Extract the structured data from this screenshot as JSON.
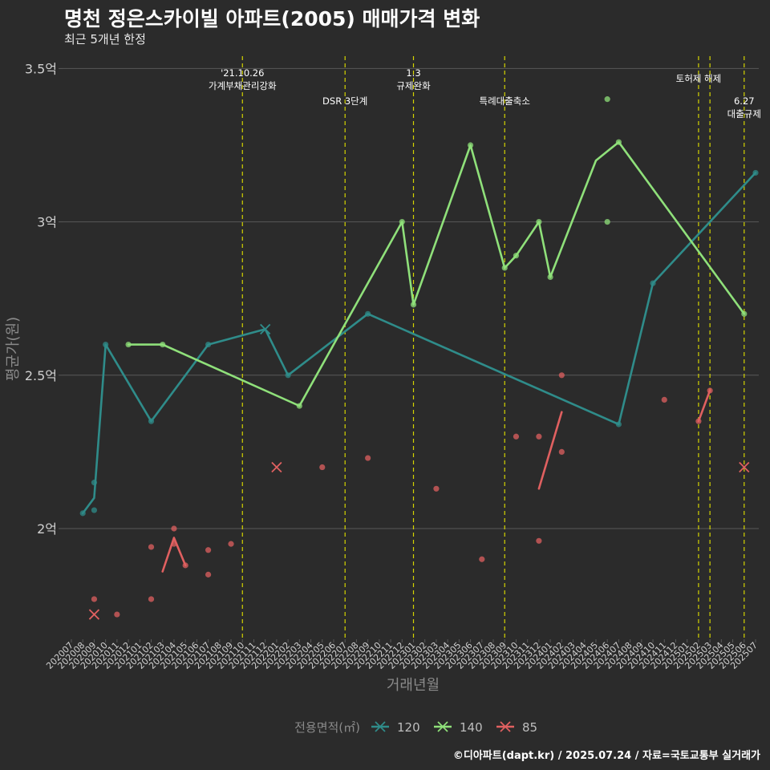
{
  "title": "명천 정은스카이빌 아파트(2005) 매매가격 변화",
  "subtitle": "최근 5개년 한정",
  "caption": "©디아파트(dapt.kr) / 2025.07.24 / 자료=국토교통부 실거래가",
  "chart_data": {
    "type": "line",
    "xlabel": "거래년월",
    "ylabel": "평균가(원)",
    "ylim": [
      1.64,
      3.52
    ],
    "y_ticks": [
      {
        "value": 2.0,
        "label": "2억"
      },
      {
        "value": 2.5,
        "label": "2.5억"
      },
      {
        "value": 3.0,
        "label": "3억"
      },
      {
        "value": 3.5,
        "label": "3.5억"
      }
    ],
    "x_categories": [
      "202007",
      "202008",
      "202009",
      "202010",
      "202011",
      "202012",
      "202101",
      "202102",
      "202103",
      "202104",
      "202105",
      "202106",
      "202107",
      "202108",
      "202109",
      "202110",
      "202111",
      "202112",
      "202201",
      "202202",
      "202203",
      "202204",
      "202205",
      "202206",
      "202207",
      "202208",
      "202209",
      "202210",
      "202211",
      "202212",
      "202301",
      "202302",
      "202303",
      "202304",
      "202305",
      "202306",
      "202307",
      "202308",
      "202309",
      "202310",
      "202311",
      "202312",
      "202401",
      "202402",
      "202403",
      "202404",
      "202405",
      "202406",
      "202407",
      "202408",
      "202409",
      "202410",
      "202411",
      "202412",
      "202501",
      "202502",
      "202503",
      "202504",
      "202505",
      "202506",
      "202507"
    ],
    "legend": {
      "title": "전용면적(㎡)",
      "position": "bottom"
    },
    "series": [
      {
        "name": "120",
        "color": "#2f8c8a",
        "line": [
          [
            "202008",
            2.05
          ],
          [
            "202009",
            2.1
          ],
          [
            "202010",
            2.6
          ],
          [
            "202102",
            2.35
          ],
          [
            "202107",
            2.6
          ],
          [
            "202112",
            2.65
          ],
          [
            "202202",
            2.5
          ],
          [
            "202209",
            2.7
          ],
          [
            "202407",
            2.34
          ],
          [
            "202410",
            2.8
          ],
          [
            "202507",
            3.16
          ]
        ],
        "points": [
          [
            "202008",
            2.05
          ],
          [
            "202009",
            2.15
          ],
          [
            "202009",
            2.06
          ],
          [
            "202010",
            2.6
          ],
          [
            "202102",
            2.35
          ],
          [
            "202107",
            2.6
          ],
          [
            "202202",
            2.5
          ],
          [
            "202209",
            2.7
          ],
          [
            "202407",
            2.34
          ],
          [
            "202410",
            2.8
          ],
          [
            "202507",
            3.16
          ]
        ],
        "x_marks": [
          [
            "202112",
            2.65
          ]
        ]
      },
      {
        "name": "140",
        "color": "#8fe07a",
        "line": [
          [
            "202012",
            2.6
          ],
          [
            "202103",
            2.6
          ],
          [
            "202203",
            2.4
          ],
          [
            "202212",
            3.0
          ],
          [
            "202301",
            2.73
          ],
          [
            "202306",
            3.25
          ],
          [
            "202309",
            2.85
          ],
          [
            "202310",
            2.89
          ],
          [
            "202312",
            3.0
          ],
          [
            "202401",
            2.82
          ],
          [
            "202405",
            3.2
          ],
          [
            "202407",
            3.26
          ],
          [
            "202506",
            2.7
          ]
        ],
        "points": [
          [
            "202012",
            2.6
          ],
          [
            "202103",
            2.6
          ],
          [
            "202203",
            2.4
          ],
          [
            "202212",
            3.0
          ],
          [
            "202301",
            2.73
          ],
          [
            "202306",
            3.25
          ],
          [
            "202309",
            2.85
          ],
          [
            "202310",
            2.89
          ],
          [
            "202312",
            3.0
          ],
          [
            "202401",
            2.82
          ],
          [
            "202406",
            3.4
          ],
          [
            "202406",
            3.0
          ],
          [
            "202407",
            3.26
          ],
          [
            "202506",
            2.7
          ]
        ],
        "x_marks": []
      },
      {
        "name": "85",
        "color": "#e06060",
        "segments": [
          [
            [
              "202103",
              1.86
            ],
            [
              "202104",
              1.97
            ],
            [
              "202105",
              1.88
            ]
          ],
          [
            [
              "202312",
              2.13
            ],
            [
              "202402",
              2.38
            ]
          ],
          [
            [
              "202502",
              2.35
            ],
            [
              "202503",
              2.45
            ]
          ]
        ],
        "points": [
          [
            "202009",
            1.77
          ],
          [
            "202011",
            1.72
          ],
          [
            "202102",
            1.94
          ],
          [
            "202102",
            1.77
          ],
          [
            "202104",
            2.0
          ],
          [
            "202104",
            1.95
          ],
          [
            "202105",
            1.88
          ],
          [
            "202107",
            1.93
          ],
          [
            "202107",
            1.85
          ],
          [
            "202109",
            1.95
          ],
          [
            "202205",
            2.2
          ],
          [
            "202209",
            2.23
          ],
          [
            "202303",
            2.13
          ],
          [
            "202307",
            1.9
          ],
          [
            "202310",
            2.3
          ],
          [
            "202312",
            2.3
          ],
          [
            "202312",
            1.96
          ],
          [
            "202402",
            2.5
          ],
          [
            "202402",
            2.25
          ],
          [
            "202411",
            2.42
          ],
          [
            "202502",
            2.35
          ],
          [
            "202503",
            2.45
          ]
        ],
        "x_marks": [
          [
            "202009",
            1.72
          ],
          [
            "202201",
            2.2
          ],
          [
            "202506",
            2.2
          ]
        ]
      }
    ],
    "events": [
      {
        "x": "202110",
        "lines": [
          "'21.10.26",
          "가계부채관리강화"
        ],
        "row": 0
      },
      {
        "x": "202207",
        "lines": [
          "DSR 3단계"
        ],
        "row": 2
      },
      {
        "x": "202301",
        "lines": [
          "1.3",
          "규제완화"
        ],
        "row": 0
      },
      {
        "x": "202309",
        "lines": [
          "특례대출축소"
        ],
        "row": 2
      },
      {
        "x": "202502",
        "lines": [
          "토허제 해제"
        ],
        "row": 1
      },
      {
        "x": "202503",
        "lines": [],
        "row": 1
      },
      {
        "x": "202506",
        "lines": [
          "6.27",
          "대출규제"
        ],
        "row": 2
      }
    ],
    "grid": true
  },
  "colors": {
    "background": "#2b2b2b",
    "grid": "#595959",
    "event_line": "#d4d400",
    "axis_text": "#d0d0d0",
    "axis_title": "#8a8a8a"
  }
}
